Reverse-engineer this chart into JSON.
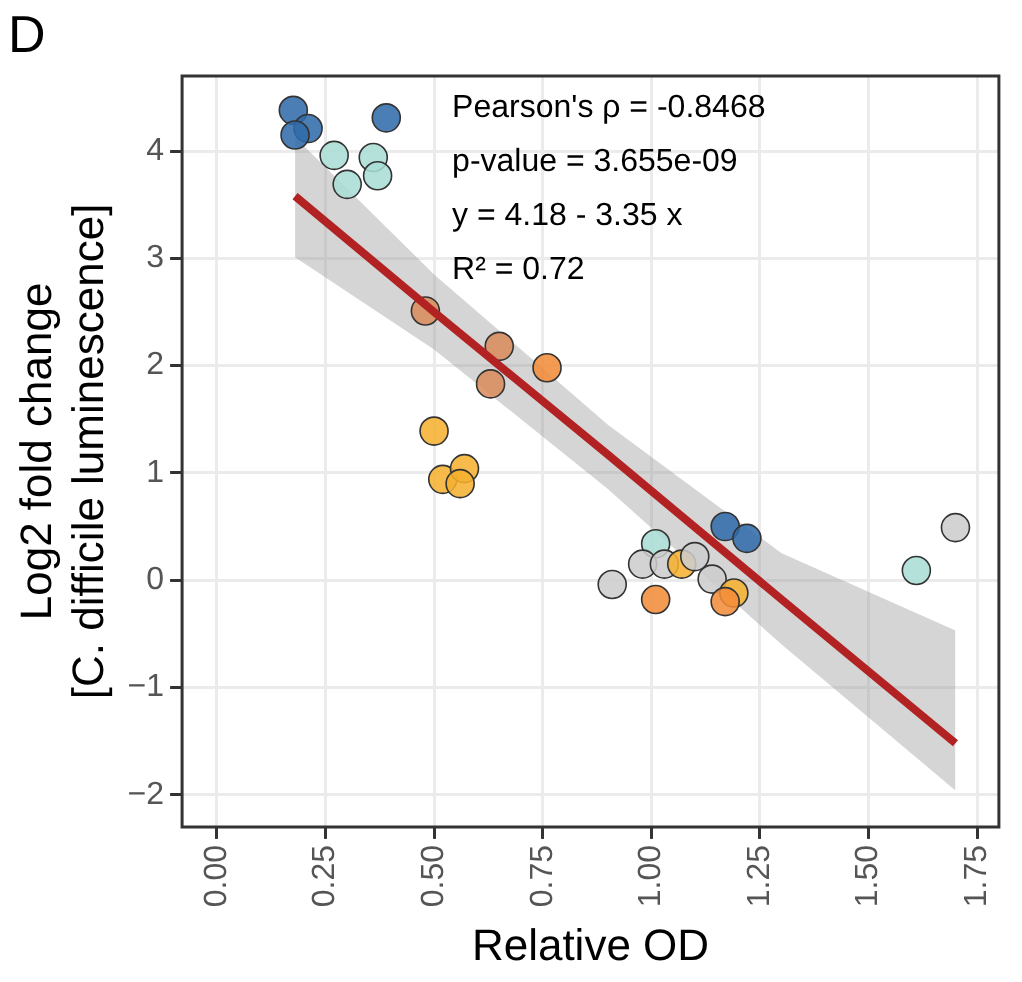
{
  "chart_data": {
    "type": "scatter",
    "title": "D",
    "xlabel": "Relative OD",
    "ylabel": "Log2 fold change\n[C. difficile luminescence]",
    "annotations": [
      "Pearson's ρ = -0.8468",
      "p-value = 3.655e-09",
      "y = 4.18 - 3.35 x",
      "R² = 0.72"
    ],
    "series": [
      {
        "type": "line",
        "marker": "none",
        "color": "#b22222",
        "x": [
          0.18,
          0.5,
          0.9,
          1.3,
          1.7
        ],
        "values": [
          3.58,
          2.5,
          1.17,
          -0.18,
          -1.52
        ],
        "lower": [
          3.01,
          2.15,
          0.85,
          -0.6,
          -1.96
        ],
        "upper": [
          4.13,
          2.85,
          1.45,
          0.25,
          -0.47
        ]
      },
      {
        "x": [
          0.176,
          0.21,
          0.18,
          0.39,
          0.27,
          0.36,
          0.3,
          0.37,
          0.48,
          0.65,
          0.63,
          0.76,
          0.5,
          0.52,
          0.57,
          0.56,
          0.91,
          1.01,
          0.98,
          1.03,
          1.07,
          1.1,
          1.01,
          1.14,
          1.19,
          1.17,
          1.17,
          1.22,
          1.61,
          1.7
        ],
        "values": [
          4.38,
          4.21,
          4.15,
          4.31,
          3.96,
          3.94,
          3.69,
          3.77,
          2.51,
          2.18,
          1.83,
          1.98,
          1.39,
          0.94,
          1.04,
          0.9,
          -0.04,
          0.34,
          0.15,
          0.15,
          0.15,
          0.22,
          -0.18,
          0.01,
          -0.12,
          -0.2,
          0.5,
          0.39,
          0.09,
          0.49
        ],
        "colors": [
          "#2f6aa8",
          "#2f6aa8",
          "#2f6aa8",
          "#2f6aa8",
          "#a8ddd5",
          "#a8ddd5",
          "#a8ddd5",
          "#a8ddd5",
          "#d98a5a",
          "#d98a5a",
          "#d98a5a",
          "#f28c38",
          "#f5b02e",
          "#f5b02e",
          "#f5b02e",
          "#f5b02e",
          "#cccccc",
          "#a8ddd5",
          "#cccccc",
          "#cccccc",
          "#f5b02e",
          "#cccccc",
          "#f28c38",
          "#cccccc",
          "#f5b02e",
          "#f28c38",
          "#2f6aa8",
          "#2f6aa8",
          "#a8ddd5",
          "#cccccc"
        ]
      }
    ],
    "xlim": [
      -0.08,
      1.8
    ],
    "xticks": [
      {
        "value": 0,
        "label": "0.00"
      },
      {
        "value": 0.25,
        "label": "0.25"
      },
      {
        "value": 0.5,
        "label": "0.50"
      },
      {
        "value": 0.75,
        "label": "0.75"
      },
      {
        "value": 1,
        "label": "1.00"
      },
      {
        "value": 1.25,
        "label": "1.25"
      },
      {
        "value": 1.5,
        "label": "1.50"
      },
      {
        "value": 1.75,
        "label": "1.75"
      }
    ],
    "ylim": [
      -2.3,
      4.7
    ],
    "yticks": [
      -2,
      -1,
      0,
      1,
      2,
      3,
      4
    ],
    "grid": true,
    "legend": false,
    "marker": "circle",
    "line_style": "solid"
  }
}
